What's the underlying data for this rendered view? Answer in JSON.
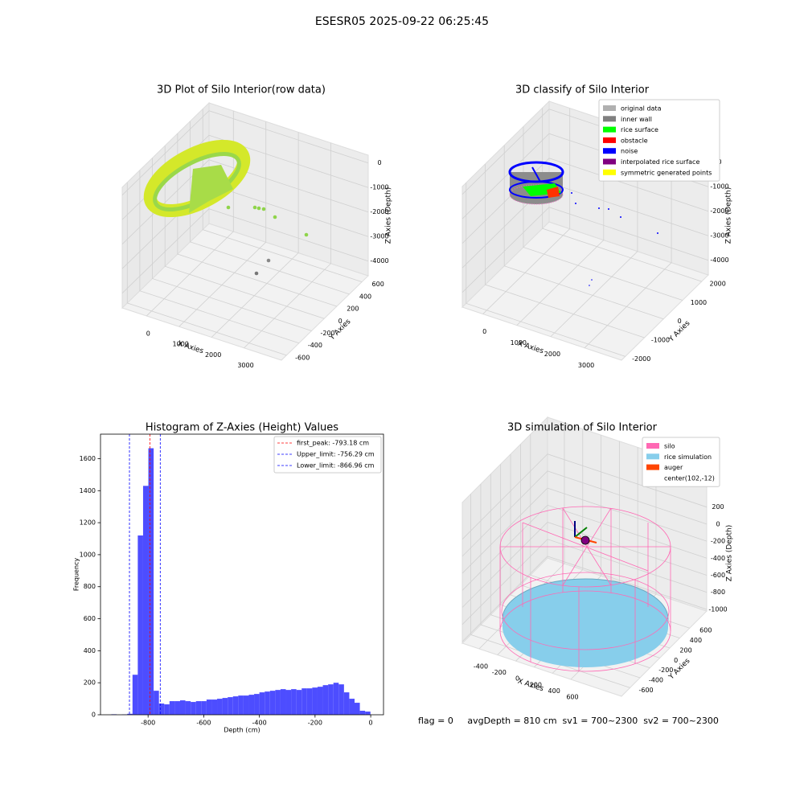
{
  "title": "ESESR05 2025-09-22 06:25:45",
  "chart_data": [
    {
      "type": "scatter3d",
      "title": "3D Plot of Silo Interior(row data)",
      "xlabel": "X Axies",
      "ylabel": "Y Axies",
      "zlabel": "Z Axies (Depth)",
      "xlim": [
        -750,
        4150
      ],
      "ylim": [
        -680,
        700
      ],
      "zlim": [
        -4600,
        318
      ],
      "xticks": [
        0,
        1000,
        2000,
        3000
      ],
      "yticks": [
        -600,
        -400,
        -200,
        0,
        200,
        400,
        600
      ],
      "zticks": [
        0,
        -1000,
        -2000,
        -3000,
        -4000
      ],
      "grid": true
    },
    {
      "type": "scatter3d",
      "title": "3D classify of Silo Interior",
      "xlabel": "X Axies",
      "ylabel": "Y Axies",
      "zlabel": "Z Axies (Depth)",
      "xlim": [
        -610,
        4090
      ],
      "ylim": [
        -2200,
        2350
      ],
      "zlim": [
        -4600,
        318
      ],
      "xticks": [
        0,
        1000,
        2000,
        3000
      ],
      "yticks": [
        -2000,
        -1000,
        0,
        1000,
        2000
      ],
      "zticks": [
        0,
        -1000,
        -2000,
        -3000,
        -4000
      ],
      "grid": true,
      "series": [
        {
          "name": "original data",
          "color": "#b0b0b0"
        },
        {
          "name": "inner wall",
          "color": "#808080"
        },
        {
          "name": "rice surface",
          "color": "#00ff00"
        },
        {
          "name": "obstacle",
          "color": "#ff0000"
        },
        {
          "name": "noise",
          "color": "#0000ff"
        },
        {
          "name": "interpolated rice surface",
          "color": "#800080"
        },
        {
          "name": "symmetric generated points",
          "color": "#ffff00"
        }
      ],
      "legend": "upper right"
    },
    {
      "type": "histogram",
      "title": "Histogram of Z-Axies (Height) Values",
      "xlabel": "Depth (cm)",
      "ylabel": "Frequency",
      "color": "#4d4dff",
      "bins": [
        -951,
        -932,
        -913,
        -894,
        -875,
        -856,
        -837,
        -818,
        -799,
        -780,
        -761,
        -742,
        -723,
        -704,
        -685,
        -666,
        -647,
        -628,
        -609,
        -590,
        -571,
        -552,
        -533,
        -514,
        -495,
        -476,
        -457,
        -438,
        -419,
        -400,
        -381,
        -362,
        -343,
        -324,
        -305,
        -286,
        -267,
        -248,
        -229,
        -210,
        -191,
        -172,
        -153,
        -134,
        -115,
        -96,
        -77,
        -58,
        -39,
        -20,
        -1
      ],
      "values": [
        0,
        3,
        0,
        2,
        6,
        250,
        1120,
        1430,
        1665,
        150,
        70,
        65,
        85,
        85,
        90,
        85,
        80,
        85,
        85,
        95,
        95,
        100,
        105,
        110,
        115,
        120,
        120,
        125,
        130,
        140,
        145,
        150,
        155,
        160,
        155,
        160,
        155,
        165,
        165,
        170,
        175,
        185,
        190,
        200,
        190,
        140,
        100,
        75,
        25,
        20
      ],
      "xlim": [
        -971,
        46
      ],
      "ylim": [
        0,
        1753
      ],
      "xticks": [
        -800,
        -600,
        -400,
        -200,
        0
      ],
      "yticks": [
        0,
        200,
        400,
        600,
        800,
        1000,
        1200,
        1400,
        1600
      ],
      "lines": [
        {
          "name": "first_peak: -793.18 cm",
          "value": -793.18,
          "color": "#ff0000"
        },
        {
          "name": "Upper_limit: -756.29 cm",
          "value": -756.29,
          "color": "#0000ff"
        },
        {
          "name": "Lower_limit: -866.96 cm",
          "value": -866.96,
          "color": "#0000ff"
        }
      ],
      "legend": "upper right"
    },
    {
      "type": "scatter3d",
      "title": "3D simulation of Silo Interior",
      "xlabel": "X Axies",
      "ylabel": "Y Axies",
      "zlabel": "Z Axies (Depth)",
      "xlim": [
        -584,
        1153
      ],
      "ylim": [
        -771,
        943
      ],
      "zlim": [
        -1020,
        631
      ],
      "xticks": [
        -400,
        -200,
        0,
        200,
        400,
        600
      ],
      "yticks": [
        -600,
        -400,
        -200,
        0,
        200,
        400,
        600
      ],
      "zticks": [
        200,
        0,
        -200,
        -400,
        -600,
        -800,
        -1000
      ],
      "grid": true,
      "series": [
        {
          "name": "silo",
          "color": "#ff69b4"
        },
        {
          "name": "rice simulation",
          "color": "#87ceeb"
        },
        {
          "name": "auger",
          "color": "#ff4500"
        },
        {
          "name": "center(102,-12)",
          "color": "#ffffff"
        }
      ],
      "legend": "upper right",
      "annotation": "flag = 0     avgDepth = 810 cm  sv1 = 700~2300  sv2 = 700~2300"
    }
  ]
}
